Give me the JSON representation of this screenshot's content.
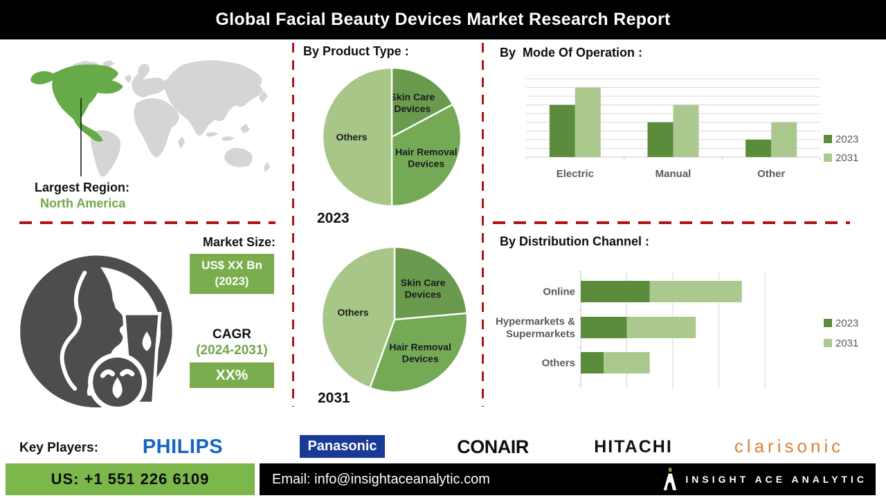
{
  "header": {
    "title": "Global Facial Beauty Devices Market Research Report"
  },
  "largest_region": {
    "label": "Largest Region:",
    "value": "North America"
  },
  "market_size": {
    "heading": "Market Size:",
    "value_line1": "US$ XX Bn",
    "value_line2": "(2023)",
    "cagr_label": "CAGR",
    "cagr_period": "(2024-2031)",
    "cagr_value": "XX%"
  },
  "key_players": {
    "label": "Key Players:",
    "companies": [
      "PHILIPS",
      "Panasonic",
      "CONAIR",
      "HITACHI",
      "clarisonic"
    ]
  },
  "footer": {
    "phone": "US: +1 551 226 6109",
    "email": "Email: info@insightaceanalytic.com",
    "brand": "INSIGHT ACE ANALYTIC"
  },
  "colors": {
    "accent_red": "#b01215",
    "green_text": "#71a745",
    "green_box": "#79ad4d",
    "footer_green": "#7bb74a",
    "map_green": "#66ab47",
    "bar_dark": "#5a8c3c",
    "bar_light": "#abc98f"
  },
  "chart_data": [
    {
      "type": "pie",
      "name": "product_type_2023",
      "section_title": "By Product Type :",
      "year_label": "2023",
      "labels": [
        "Skin Care Devices",
        "Hair Removal Devices",
        "Others"
      ],
      "label_lines": [
        [
          "Skin Care",
          "Devices"
        ],
        [
          "Hair Removal",
          "Devices"
        ],
        [
          "Others"
        ]
      ],
      "values_pct": [
        17.2,
        32.8,
        50.0
      ],
      "colors": [
        "#6a9a4e",
        "#74aa55",
        "#a7c688"
      ]
    },
    {
      "type": "pie",
      "name": "product_type_2031",
      "year_label": "2031",
      "labels": [
        "Skin Care Devices",
        "Hair Removal Devices",
        "Others"
      ],
      "label_lines": [
        [
          "Skin Care",
          "Devices"
        ],
        [
          "Hair Removal",
          "Devices"
        ],
        [
          "Others"
        ]
      ],
      "values_pct": [
        23.6,
        31.9,
        44.5
      ],
      "colors": [
        "#6a9a4e",
        "#74aa55",
        "#a7c688"
      ]
    },
    {
      "type": "bar",
      "name": "mode_of_operation",
      "title": "By  Mode Of Operation :",
      "categories": [
        "Electric",
        "Manual",
        "Other"
      ],
      "series": [
        {
          "name": "2023",
          "color": "#5a8c3c",
          "values": [
            6,
            4,
            2
          ]
        },
        {
          "name": "2031",
          "color": "#abc98f",
          "values": [
            8,
            6,
            4
          ]
        }
      ],
      "ylim": [
        0,
        9
      ],
      "gridline_step": 1,
      "grid": true,
      "legend_position": "right"
    },
    {
      "type": "bar-horizontal-stacked",
      "name": "distribution_channel",
      "title": "By Distribution Channel :",
      "categories": [
        "Online",
        "Hypermarkets & Supermarkets",
        "Others"
      ],
      "category_lines": [
        [
          "Online"
        ],
        [
          "Hypermarkets &",
          "Supermarkets"
        ],
        [
          "Others"
        ]
      ],
      "series": [
        {
          "name": "2023",
          "color": "#5a8c3c",
          "values": [
            1.5,
            1.0,
            0.5
          ]
        },
        {
          "name": "2031",
          "color": "#abc98f",
          "values": [
            2.0,
            1.5,
            1.0
          ]
        }
      ],
      "xlim": [
        0,
        4
      ],
      "gridline_step": 1,
      "grid": true,
      "legend_position": "right"
    }
  ]
}
